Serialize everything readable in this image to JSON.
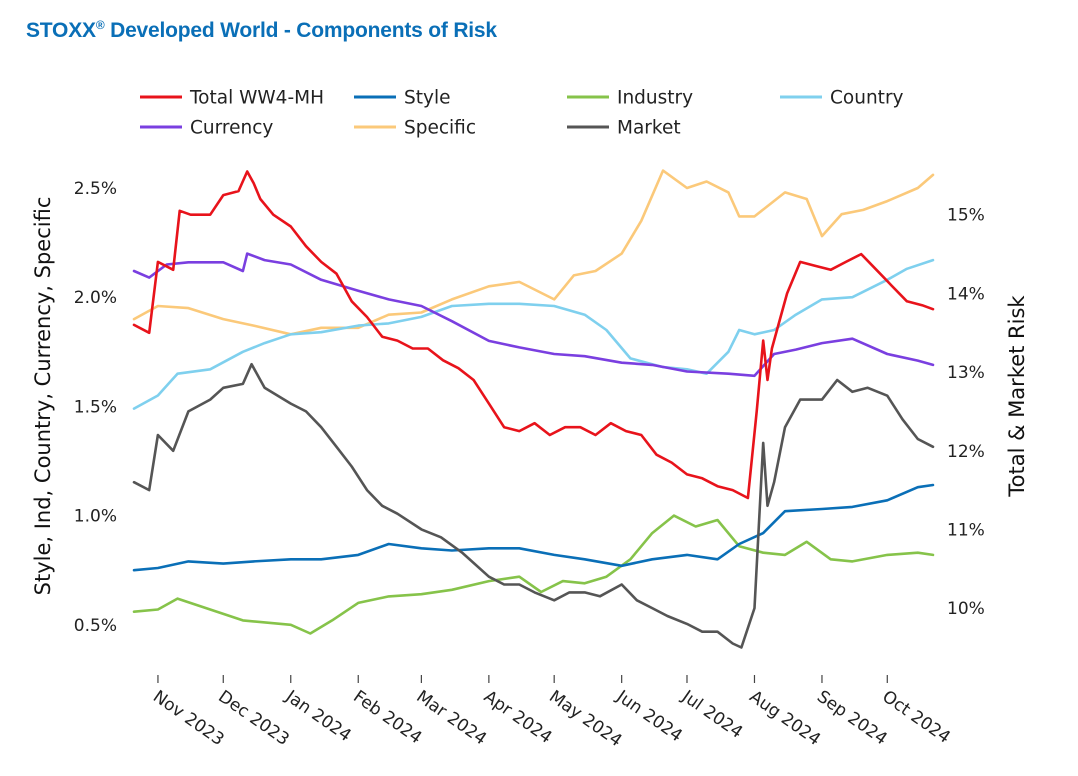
{
  "title": {
    "main": "STOXX",
    "reg": "®",
    "rest": " Developed World - Components of Risk"
  },
  "chart_data": {
    "type": "line",
    "x_ticks": [
      "Nov 2023",
      "Dec 2023",
      "Jan 2024",
      "Feb 2024",
      "Mar 2024",
      "Apr 2024",
      "May 2024",
      "Jun 2024",
      "Jul 2024",
      "Aug 2024",
      "Sep 2024",
      "Oct 2024"
    ],
    "x_range": [
      "2023-10-21",
      "2024-10-22"
    ],
    "y_left": {
      "label": "Style, Ind, Country, Currency, Specific",
      "ticks": [
        "0.5%",
        "1.0%",
        "1.5%",
        "2.0%",
        "2.5%"
      ],
      "tick_values": [
        0.5,
        1.0,
        1.5,
        2.0,
        2.5
      ],
      "range": [
        0.27,
        2.72
      ]
    },
    "y_right": {
      "label": "Total & Market Risk",
      "ticks": [
        "10%",
        "11%",
        "12%",
        "13%",
        "14%",
        "15%"
      ],
      "tick_values": [
        10,
        11,
        12,
        13,
        14,
        15
      ],
      "range": [
        9.15,
        15.95
      ]
    },
    "legend": [
      {
        "name": "Total WW4-MH",
        "color": "#e8131b"
      },
      {
        "name": "Style",
        "color": "#0a6fb7"
      },
      {
        "name": "Industry",
        "color": "#86c34a"
      },
      {
        "name": "Country",
        "color": "#7fd0ee"
      },
      {
        "name": "Currency",
        "color": "#7a3fe0"
      },
      {
        "name": "Specific",
        "color": "#fbc97a"
      },
      {
        "name": "Market",
        "color": "#555555"
      }
    ],
    "series": [
      {
        "name": "Total WW4-MH",
        "axis": "right",
        "color": "#e8131b",
        "x": [
          "2023-10-21",
          "2023-10-28",
          "2023-11-01",
          "2023-11-08",
          "2023-11-11",
          "2023-11-16",
          "2023-11-25",
          "2023-12-01",
          "2023-12-08",
          "2023-12-12",
          "2023-12-15",
          "2023-12-18",
          "2023-12-24",
          "2024-01-01",
          "2024-01-08",
          "2024-01-15",
          "2024-01-22",
          "2024-01-29",
          "2024-02-05",
          "2024-02-12",
          "2024-02-19",
          "2024-02-26",
          "2024-03-04",
          "2024-03-11",
          "2024-03-18",
          "2024-03-25",
          "2024-04-01",
          "2024-04-08",
          "2024-04-15",
          "2024-04-22",
          "2024-04-29",
          "2024-05-06",
          "2024-05-13",
          "2024-05-20",
          "2024-05-27",
          "2024-06-03",
          "2024-06-10",
          "2024-06-17",
          "2024-06-24",
          "2024-07-01",
          "2024-07-08",
          "2024-07-15",
          "2024-07-22",
          "2024-07-29",
          "2024-08-02",
          "2024-08-05",
          "2024-08-07",
          "2024-08-09",
          "2024-08-12",
          "2024-08-16",
          "2024-08-22",
          "2024-08-29",
          "2024-09-05",
          "2024-09-12",
          "2024-09-19",
          "2024-09-26",
          "2024-10-03",
          "2024-10-10",
          "2024-10-17",
          "2024-10-22"
        ],
        "y": [
          13.6,
          13.5,
          14.4,
          14.3,
          15.05,
          15.0,
          15.0,
          15.25,
          15.3,
          15.55,
          15.4,
          15.2,
          15.0,
          14.85,
          14.6,
          14.4,
          14.25,
          13.9,
          13.7,
          13.45,
          13.4,
          13.3,
          13.3,
          13.15,
          13.05,
          12.9,
          12.6,
          12.3,
          12.25,
          12.35,
          12.2,
          12.3,
          12.3,
          12.2,
          12.35,
          12.25,
          12.2,
          11.95,
          11.85,
          11.7,
          11.65,
          11.55,
          11.5,
          11.4,
          12.5,
          13.4,
          12.9,
          13.3,
          13.6,
          14.0,
          14.4,
          14.35,
          14.3,
          14.4,
          14.5,
          14.3,
          14.1,
          13.9,
          13.85,
          13.8
        ]
      },
      {
        "name": "Style",
        "axis": "left",
        "color": "#0a6fb7",
        "x": [
          "2023-10-21",
          "2023-11-01",
          "2023-11-15",
          "2023-12-01",
          "2023-12-15",
          "2024-01-01",
          "2024-01-15",
          "2024-02-01",
          "2024-02-15",
          "2024-03-01",
          "2024-03-15",
          "2024-04-01",
          "2024-04-15",
          "2024-05-01",
          "2024-05-15",
          "2024-06-01",
          "2024-06-15",
          "2024-07-01",
          "2024-07-15",
          "2024-07-25",
          "2024-08-05",
          "2024-08-15",
          "2024-09-01",
          "2024-09-15",
          "2024-10-01",
          "2024-10-15",
          "2024-10-22"
        ],
        "y": [
          0.75,
          0.76,
          0.79,
          0.78,
          0.79,
          0.8,
          0.8,
          0.82,
          0.87,
          0.85,
          0.84,
          0.85,
          0.85,
          0.82,
          0.8,
          0.77,
          0.8,
          0.82,
          0.8,
          0.87,
          0.92,
          1.02,
          1.03,
          1.04,
          1.07,
          1.13,
          1.14
        ]
      },
      {
        "name": "Industry",
        "axis": "left",
        "color": "#86c34a",
        "x": [
          "2023-10-21",
          "2023-11-01",
          "2023-11-10",
          "2023-11-25",
          "2023-12-10",
          "2024-01-01",
          "2024-01-10",
          "2024-01-20",
          "2024-02-01",
          "2024-02-15",
          "2024-03-01",
          "2024-03-15",
          "2024-04-01",
          "2024-04-15",
          "2024-04-25",
          "2024-05-05",
          "2024-05-15",
          "2024-05-25",
          "2024-06-05",
          "2024-06-15",
          "2024-06-25",
          "2024-07-05",
          "2024-07-15",
          "2024-07-25",
          "2024-08-05",
          "2024-08-15",
          "2024-08-25",
          "2024-09-05",
          "2024-09-15",
          "2024-10-01",
          "2024-10-15",
          "2024-10-22"
        ],
        "y": [
          0.56,
          0.57,
          0.62,
          0.57,
          0.52,
          0.5,
          0.46,
          0.52,
          0.6,
          0.63,
          0.64,
          0.66,
          0.7,
          0.72,
          0.65,
          0.7,
          0.69,
          0.72,
          0.8,
          0.92,
          1.0,
          0.95,
          0.98,
          0.86,
          0.83,
          0.82,
          0.88,
          0.8,
          0.79,
          0.82,
          0.83,
          0.82
        ]
      },
      {
        "name": "Country",
        "axis": "left",
        "color": "#7fd0ee",
        "x": [
          "2023-10-21",
          "2023-11-01",
          "2023-11-10",
          "2023-11-25",
          "2023-12-10",
          "2023-12-20",
          "2024-01-01",
          "2024-01-15",
          "2024-02-01",
          "2024-02-15",
          "2024-03-01",
          "2024-03-15",
          "2024-04-01",
          "2024-04-15",
          "2024-05-01",
          "2024-05-15",
          "2024-05-25",
          "2024-06-05",
          "2024-06-20",
          "2024-07-01",
          "2024-07-10",
          "2024-07-20",
          "2024-07-25",
          "2024-08-01",
          "2024-08-10",
          "2024-08-20",
          "2024-09-01",
          "2024-09-15",
          "2024-10-01",
          "2024-10-10",
          "2024-10-22"
        ],
        "y": [
          1.49,
          1.55,
          1.65,
          1.67,
          1.75,
          1.79,
          1.83,
          1.84,
          1.87,
          1.88,
          1.91,
          1.96,
          1.97,
          1.97,
          1.96,
          1.92,
          1.85,
          1.72,
          1.68,
          1.67,
          1.65,
          1.75,
          1.85,
          1.83,
          1.85,
          1.92,
          1.99,
          2.0,
          2.08,
          2.13,
          2.17
        ]
      },
      {
        "name": "Currency",
        "axis": "left",
        "color": "#7a3fe0",
        "x": [
          "2023-10-21",
          "2023-10-28",
          "2023-11-05",
          "2023-11-15",
          "2023-12-01",
          "2023-12-10",
          "2023-12-12",
          "2023-12-20",
          "2024-01-01",
          "2024-01-15",
          "2024-02-01",
          "2024-02-15",
          "2024-03-01",
          "2024-03-15",
          "2024-04-01",
          "2024-04-15",
          "2024-05-01",
          "2024-05-15",
          "2024-06-01",
          "2024-06-15",
          "2024-07-01",
          "2024-07-20",
          "2024-08-01",
          "2024-08-10",
          "2024-08-20",
          "2024-09-01",
          "2024-09-15",
          "2024-10-01",
          "2024-10-15",
          "2024-10-22"
        ],
        "y": [
          2.12,
          2.09,
          2.15,
          2.16,
          2.16,
          2.12,
          2.2,
          2.17,
          2.15,
          2.08,
          2.03,
          1.99,
          1.96,
          1.89,
          1.8,
          1.77,
          1.74,
          1.73,
          1.7,
          1.69,
          1.66,
          1.65,
          1.64,
          1.74,
          1.76,
          1.79,
          1.81,
          1.74,
          1.71,
          1.69
        ]
      },
      {
        "name": "Specific",
        "axis": "left",
        "color": "#fbc97a",
        "x": [
          "2023-10-21",
          "2023-11-01",
          "2023-11-15",
          "2023-12-01",
          "2023-12-15",
          "2024-01-01",
          "2024-01-15",
          "2024-02-01",
          "2024-02-15",
          "2024-03-01",
          "2024-03-15",
          "2024-04-01",
          "2024-04-15",
          "2024-05-01",
          "2024-05-10",
          "2024-05-20",
          "2024-06-01",
          "2024-06-10",
          "2024-06-20",
          "2024-07-01",
          "2024-07-10",
          "2024-07-20",
          "2024-07-25",
          "2024-08-01",
          "2024-08-15",
          "2024-08-25",
          "2024-09-01",
          "2024-09-10",
          "2024-09-20",
          "2024-10-01",
          "2024-10-15",
          "2024-10-22"
        ],
        "y": [
          1.9,
          1.96,
          1.95,
          1.9,
          1.87,
          1.83,
          1.86,
          1.86,
          1.92,
          1.93,
          1.99,
          2.05,
          2.07,
          1.99,
          2.1,
          2.12,
          2.2,
          2.35,
          2.58,
          2.5,
          2.53,
          2.48,
          2.37,
          2.37,
          2.48,
          2.45,
          2.28,
          2.38,
          2.4,
          2.44,
          2.5,
          2.56
        ]
      },
      {
        "name": "Market",
        "axis": "right",
        "color": "#555555",
        "x": [
          "2023-10-21",
          "2023-10-28",
          "2023-11-01",
          "2023-11-08",
          "2023-11-15",
          "2023-11-25",
          "2023-12-01",
          "2023-12-10",
          "2023-12-14",
          "2023-12-20",
          "2024-01-01",
          "2024-01-08",
          "2024-01-15",
          "2024-01-22",
          "2024-01-29",
          "2024-02-05",
          "2024-02-12",
          "2024-02-19",
          "2024-03-01",
          "2024-03-10",
          "2024-03-20",
          "2024-04-01",
          "2024-04-08",
          "2024-04-15",
          "2024-04-22",
          "2024-05-01",
          "2024-05-08",
          "2024-05-15",
          "2024-05-22",
          "2024-06-01",
          "2024-06-08",
          "2024-06-15",
          "2024-06-22",
          "2024-07-01",
          "2024-07-08",
          "2024-07-15",
          "2024-07-22",
          "2024-07-26",
          "2024-08-01",
          "2024-08-05",
          "2024-08-07",
          "2024-08-10",
          "2024-08-15",
          "2024-08-22",
          "2024-09-01",
          "2024-09-08",
          "2024-09-15",
          "2024-09-22",
          "2024-10-01",
          "2024-10-08",
          "2024-10-15",
          "2024-10-22"
        ],
        "y": [
          11.6,
          11.5,
          12.2,
          12.0,
          12.5,
          12.65,
          12.8,
          12.85,
          13.1,
          12.8,
          12.6,
          12.5,
          12.3,
          12.05,
          11.8,
          11.5,
          11.3,
          11.2,
          11.0,
          10.9,
          10.7,
          10.4,
          10.3,
          10.3,
          10.2,
          10.1,
          10.2,
          10.2,
          10.15,
          10.3,
          10.1,
          10.0,
          9.9,
          9.8,
          9.7,
          9.7,
          9.55,
          9.5,
          10.0,
          12.1,
          11.3,
          11.6,
          12.3,
          12.65,
          12.65,
          12.9,
          12.75,
          12.8,
          12.7,
          12.4,
          12.15,
          12.05
        ]
      }
    ]
  }
}
